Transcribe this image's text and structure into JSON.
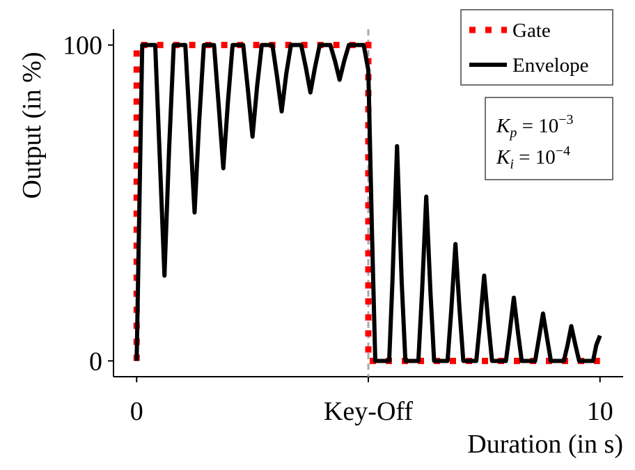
{
  "chart_data": {
    "type": "line",
    "xlabel": "Duration (in s)",
    "ylabel": "Output (in %)",
    "xlim": [
      -0.5,
      10.5
    ],
    "ylim": [
      -5,
      105
    ],
    "xticks": [
      0,
      {
        "value": 5,
        "label": "Key-Off"
      },
      10
    ],
    "yticks": [
      0,
      100
    ],
    "key_off_line": {
      "x": 5,
      "color": "#aaaaaa"
    },
    "legend": "upper right",
    "series": [
      {
        "name": "Gate",
        "color": "#ff0000",
        "style": "dotted",
        "x": [
          0,
          0,
          5,
          5,
          10
        ],
        "values": [
          0,
          100,
          100,
          0,
          0
        ]
      },
      {
        "name": "Envelope",
        "color": "#000000",
        "style": "solid",
        "x": [
          0,
          0.12,
          0.4,
          0.5,
          0.6,
          0.7,
          0.8,
          1.05,
          1.15,
          1.25,
          1.35,
          1.45,
          1.67,
          1.77,
          1.87,
          1.97,
          2.07,
          2.3,
          2.4,
          2.5,
          2.6,
          2.7,
          2.93,
          3.03,
          3.13,
          3.23,
          3.33,
          3.55,
          3.65,
          3.75,
          3.85,
          3.95,
          4.18,
          4.28,
          4.38,
          4.48,
          4.58,
          4.9,
          5.0,
          5.08,
          5.15,
          5.45,
          5.52,
          5.62,
          5.72,
          5.8,
          6.08,
          6.16,
          6.25,
          6.34,
          6.42,
          6.71,
          6.79,
          6.88,
          6.97,
          7.05,
          7.33,
          7.41,
          7.5,
          7.59,
          7.67,
          7.97,
          8.05,
          8.14,
          8.23,
          8.31,
          8.6,
          8.68,
          8.77,
          8.86,
          8.94,
          9.22,
          9.3,
          9.38,
          9.47,
          9.55,
          9.85,
          9.92,
          10
        ],
        "values": [
          0,
          100,
          100,
          64,
          27,
          67,
          100,
          100,
          74,
          47,
          76,
          100,
          100,
          81,
          61,
          82,
          100,
          100,
          86,
          71,
          87,
          100,
          100,
          90,
          79,
          91,
          100,
          100,
          93,
          85,
          93,
          100,
          100,
          95,
          89,
          95,
          100,
          100,
          92,
          40,
          0,
          0,
          25,
          68,
          25,
          0,
          0,
          22,
          52,
          22,
          0,
          0,
          16,
          37,
          16,
          0,
          0,
          12,
          27,
          12,
          0,
          0,
          9,
          20,
          9,
          0,
          0,
          7,
          15,
          7,
          0,
          0,
          5,
          11,
          5,
          0,
          0,
          5,
          8
        ]
      }
    ],
    "annotations": [
      {
        "symbol": "K",
        "sub": "p",
        "rest": " = 10",
        "exp": "−3"
      },
      {
        "symbol": "K",
        "sub": "i",
        "rest": " = 10",
        "exp": "−4"
      }
    ]
  }
}
